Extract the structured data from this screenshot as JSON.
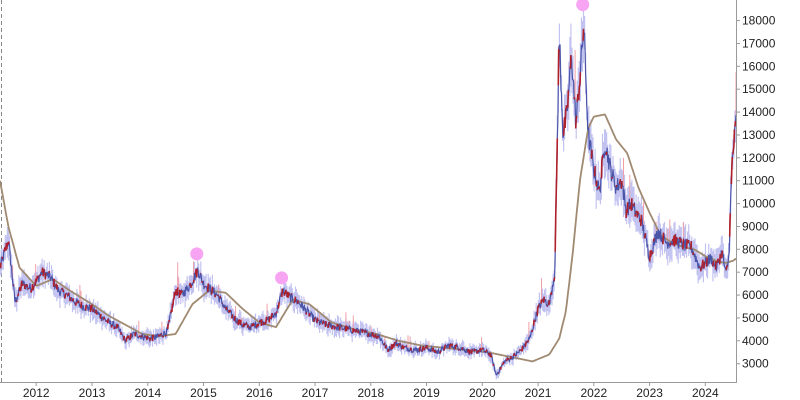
{
  "chart_data": {
    "type": "line",
    "title": "",
    "xlabel": "",
    "ylabel": "",
    "xlim": [
      2011.35,
      2024.55
    ],
    "ylim": [
      2200,
      18900
    ],
    "x_ticks": [
      "2012",
      "2013",
      "2014",
      "2015",
      "2016",
      "2017",
      "2018",
      "2019",
      "2020",
      "2021",
      "2022",
      "2023",
      "2024"
    ],
    "y_ticks": [
      3000,
      4000,
      5000,
      6000,
      7000,
      8000,
      9000,
      10000,
      11000,
      12000,
      13000,
      14000,
      15000,
      16000,
      17000,
      18000
    ],
    "y_axis_side": "right",
    "grid": false,
    "legend": "none",
    "colors": {
      "price_line": "#4a55a8",
      "price_up": "#b0202a",
      "range_band": "#b8b8ee",
      "wick": "#f0a0a8",
      "moving_average": "#a08a72",
      "marker": "#f7a4f2",
      "axis": "#9a9a9a"
    },
    "series": [
      {
        "type": "line",
        "x": [
          2011.35,
          2011.5,
          2011.62,
          2011.75,
          2011.9,
          2012.0,
          2012.1,
          2012.25,
          2012.4,
          2012.55,
          2012.7,
          2012.85,
          2013.0,
          2013.15,
          2013.3,
          2013.45,
          2013.6,
          2013.75,
          2013.9,
          2014.05,
          2014.2,
          2014.35,
          2014.5,
          2014.6,
          2014.75,
          2014.9,
          2015.0,
          2015.1,
          2015.25,
          2015.4,
          2015.55,
          2015.7,
          2015.85,
          2016.0,
          2016.15,
          2016.3,
          2016.42,
          2016.55,
          2016.7,
          2016.85,
          2017.0,
          2017.2,
          2017.4,
          2017.6,
          2017.8,
          2018.0,
          2018.15,
          2018.3,
          2018.45,
          2018.6,
          2018.8,
          2019.0,
          2019.2,
          2019.4,
          2019.6,
          2019.8,
          2020.0,
          2020.15,
          2020.25,
          2020.4,
          2020.55,
          2020.7,
          2020.85,
          2021.0,
          2021.1,
          2021.2,
          2021.3,
          2021.38,
          2021.45,
          2021.52,
          2021.6,
          2021.68,
          2021.75,
          2021.82,
          2021.9,
          2022.0,
          2022.1,
          2022.2,
          2022.3,
          2022.4,
          2022.5,
          2022.58,
          2022.67,
          2022.75,
          2022.85,
          2023.0,
          2023.15,
          2023.3,
          2023.45,
          2023.6,
          2023.75,
          2023.9,
          2024.0,
          2024.1,
          2024.2,
          2024.3,
          2024.37,
          2024.42,
          2024.48,
          2024.55
        ],
        "y": [
          7200,
          8400,
          5700,
          6500,
          6300,
          6600,
          7000,
          6800,
          6200,
          6000,
          5700,
          5500,
          5400,
          5100,
          4800,
          4600,
          4000,
          4300,
          4200,
          4100,
          4200,
          4400,
          6200,
          6000,
          6400,
          7100,
          6500,
          6300,
          6000,
          5400,
          5000,
          4700,
          4600,
          4800,
          4900,
          5200,
          6200,
          5900,
          5700,
          5300,
          4900,
          4700,
          4600,
          4500,
          4400,
          4300,
          4200,
          3600,
          3900,
          3700,
          3600,
          3700,
          3500,
          3800,
          3700,
          3500,
          3600,
          3400,
          2500,
          3100,
          3300,
          3600,
          4100,
          5400,
          5800,
          5600,
          7000,
          17300,
          13000,
          14000,
          16500,
          13500,
          15500,
          17800,
          13000,
          11500,
          10500,
          12700,
          11500,
          10700,
          11000,
          9700,
          10000,
          9600,
          9300,
          7700,
          8800,
          8300,
          8400,
          8200,
          8100,
          7200,
          7400,
          7600,
          7200,
          7900,
          6900,
          7600,
          11800,
          13600
        ]
      },
      {
        "type": "line",
        "x": [
          2011.35,
          2011.5,
          2011.7,
          2012.0,
          2012.3,
          2012.6,
          2013.0,
          2013.3,
          2013.6,
          2013.9,
          2014.2,
          2014.5,
          2014.8,
          2015.1,
          2015.4,
          2015.7,
          2016.0,
          2016.3,
          2016.6,
          2016.9,
          2017.3,
          2017.7,
          2018.1,
          2018.5,
          2018.9,
          2019.3,
          2019.7,
          2020.1,
          2020.5,
          2020.9,
          2021.2,
          2021.38,
          2021.5,
          2021.62,
          2021.75,
          2021.9,
          2022.0,
          2022.2,
          2022.4,
          2022.6,
          2022.8,
          2023.0,
          2023.2,
          2023.4,
          2023.6,
          2023.8,
          2024.0,
          2024.2,
          2024.35,
          2024.5,
          2024.55
        ],
        "y": [
          11000,
          9000,
          7200,
          6400,
          6700,
          6200,
          5600,
          5100,
          4700,
          4300,
          4200,
          4300,
          5600,
          6200,
          6100,
          5400,
          4800,
          4600,
          5800,
          5600,
          4800,
          4500,
          4300,
          4000,
          3800,
          3700,
          3600,
          3500,
          3300,
          3100,
          3400,
          4100,
          5300,
          7800,
          11000,
          13300,
          13800,
          13900,
          12800,
          12200,
          10700,
          9600,
          8600,
          8300,
          8100,
          8000,
          7700,
          7500,
          7400,
          7500,
          7600
        ]
      }
    ],
    "markers": [
      {
        "x": 2014.88,
        "y": 7800
      },
      {
        "x": 2016.4,
        "y": 6750
      },
      {
        "x": 2021.8,
        "y": 18700
      }
    ]
  }
}
